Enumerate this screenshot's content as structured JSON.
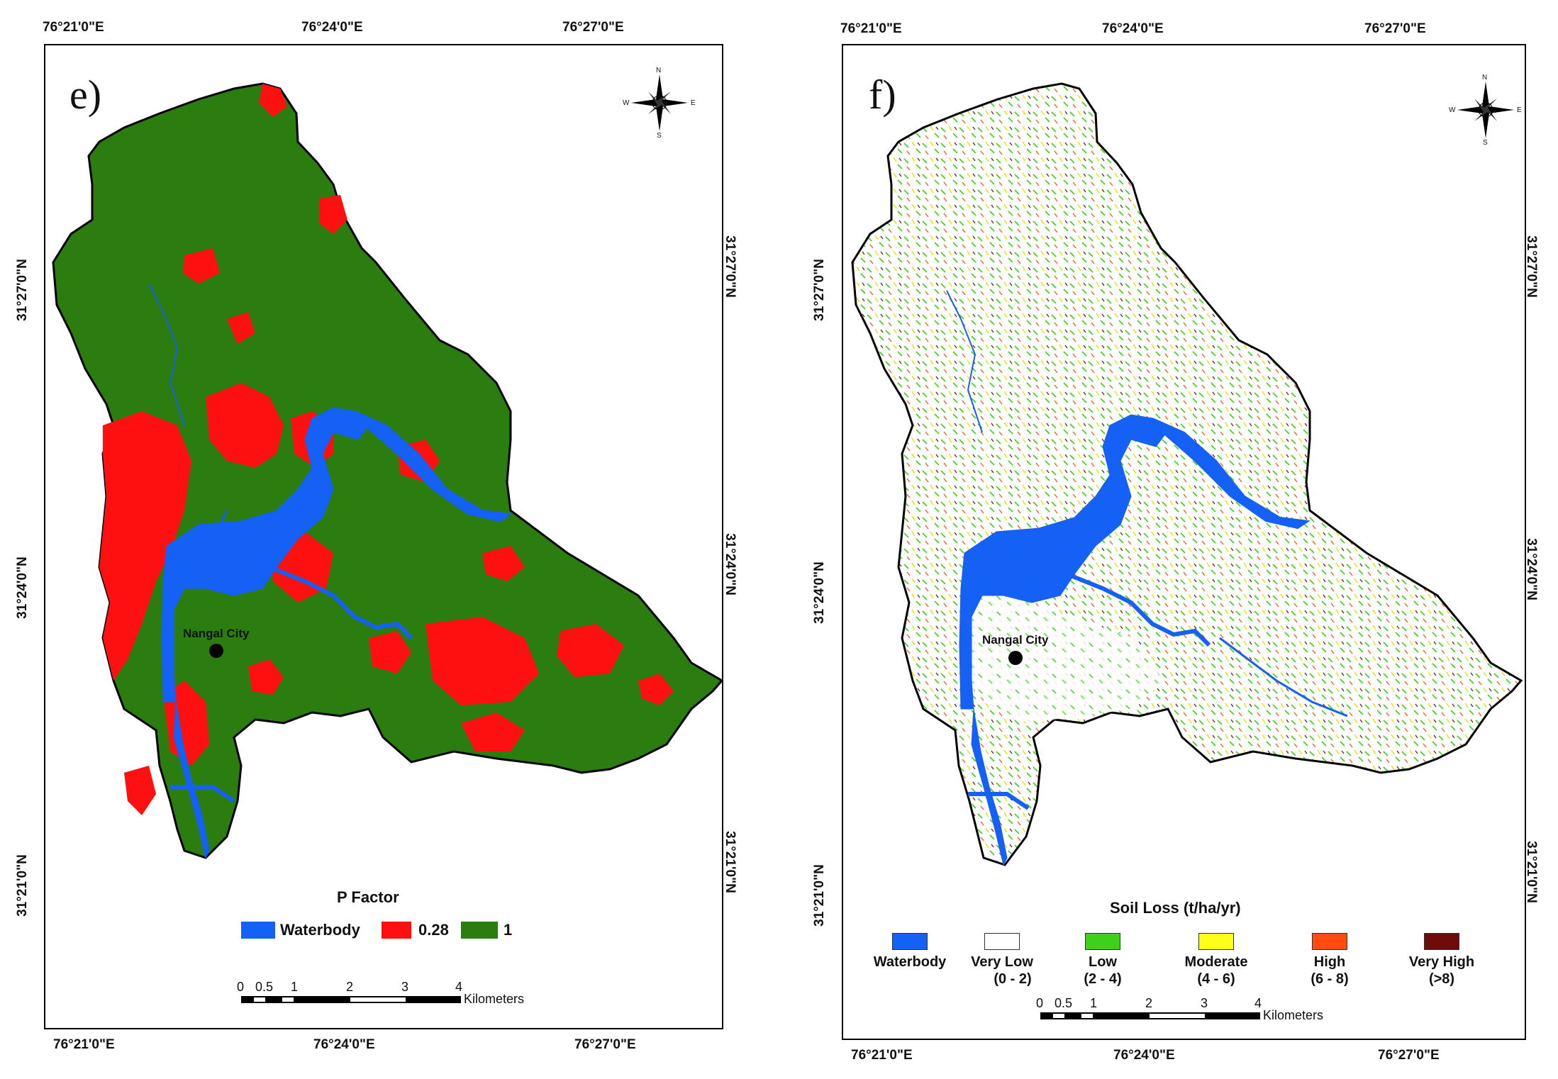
{
  "panels": [
    {
      "label": "e)",
      "top_ticks": [
        "76°21'0\"E",
        "76°24'0\"E",
        "76°27'0\"E"
      ],
      "bottom_ticks": [
        "76°21'0\"E",
        "76°24'0\"E",
        "76°27'0\"E"
      ],
      "left_ticks": [
        "31°27'0\"N",
        "31°24'0\"N",
        "31°21'0\"N"
      ],
      "right_ticks": [
        "31°27'0\"N",
        "31°24'0\"N",
        "31°21'0\"N"
      ],
      "city": "Nangal City",
      "legend_title": "P Factor",
      "legend": [
        {
          "label": "Waterbody",
          "color": "#1560f5"
        },
        {
          "label": "0.28",
          "color": "#ff1010"
        },
        {
          "label": "1",
          "color": "#2a7d0e"
        }
      ],
      "scale_ticks": [
        "0",
        "0.5",
        "1",
        "2",
        "3",
        "4"
      ],
      "scale_unit": "Kilometers",
      "compass": {
        "n": "N",
        "s": "S",
        "e": "E",
        "w": "W"
      }
    },
    {
      "label": "f)",
      "top_ticks": [
        "76°21'0\"E",
        "76°24'0\"E",
        "76°27'0\"E"
      ],
      "bottom_ticks": [
        "76°21'0\"E",
        "76°24'0\"E",
        "76°27'0\"E"
      ],
      "left_ticks": [
        "31°27'0\"N",
        "31°24'0\"N",
        "31°21'0\"N"
      ],
      "right_ticks": [
        "31°27'0\"N",
        "31°24'0\"N",
        "31°21'0\"N"
      ],
      "city": "Nangal City",
      "legend_title": "Soil Loss (t/ha/yr)",
      "legend": [
        {
          "label": "Waterbody",
          "range": "",
          "color": "#1560f5"
        },
        {
          "label": "Very Low",
          "range": "(0 - 2)",
          "color": "#ffffff"
        },
        {
          "label": "Low",
          "range": "(2 - 4)",
          "color": "#3fd11a"
        },
        {
          "label": "Moderate",
          "range": "(4 - 6)",
          "color": "#ffff1a"
        },
        {
          "label": "High",
          "range": "(6 - 8)",
          "color": "#ff4a10"
        },
        {
          "label": "Very High",
          "range": "(>8)",
          "color": "#6e0b0b"
        }
      ],
      "scale_ticks": [
        "0",
        "0.5",
        "1",
        "2",
        "3",
        "4"
      ],
      "scale_unit": "Kilometers",
      "compass": {
        "n": "N",
        "s": "S",
        "e": "E",
        "w": "W"
      }
    }
  ],
  "colors": {
    "water": "#1560f5",
    "pfactor_low": "#ff1010",
    "pfactor_high": "#2a7d0e",
    "soil_low": "#3fd11a",
    "soil_moderate": "#e8e000",
    "soil_high": "#ff4a10",
    "soil_very_high": "#6e0b0b"
  }
}
